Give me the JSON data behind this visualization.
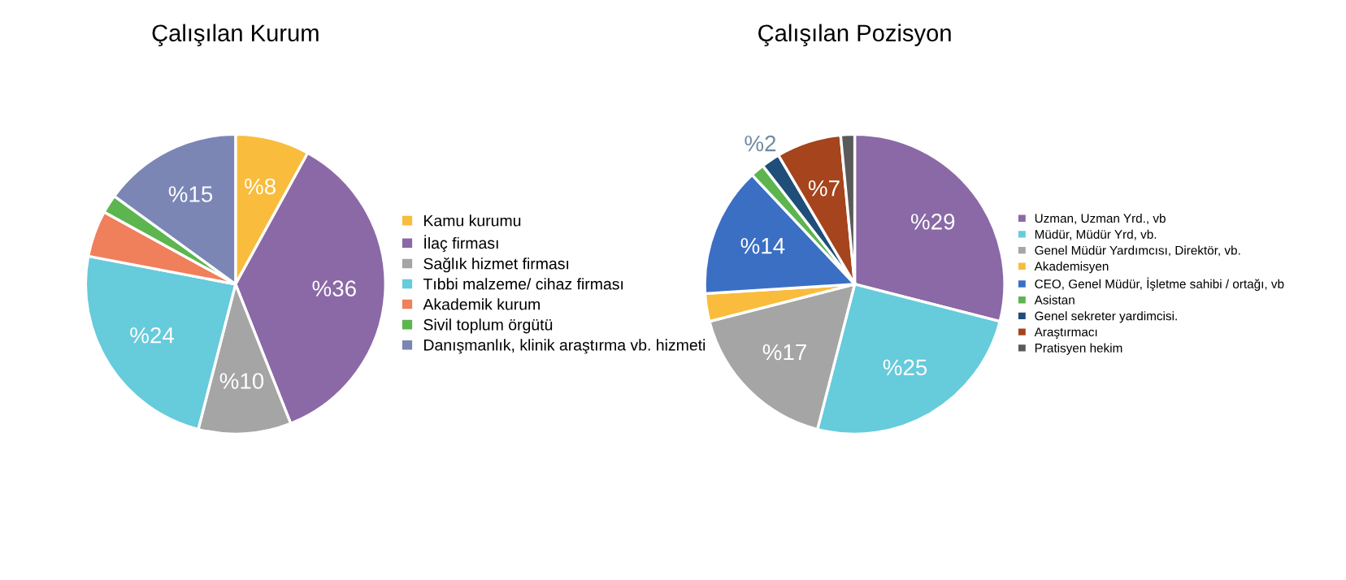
{
  "chart_data": [
    {
      "type": "pie",
      "title": "Çalışılan Kurum",
      "legend": "right",
      "categories": [
        "Kamu kurumu",
        "İlaç firması",
        "Sağlık hizmet firması",
        "Tıbbi malzeme/ cihaz firması",
        "Akademik kurum",
        "Sivil toplum örgütü",
        "Danışmanlık, klinik araştırma vb. hizmeti"
      ],
      "values": [
        8,
        36,
        10,
        24,
        5,
        2,
        15
      ],
      "value_labels": [
        "%8",
        "%36",
        "%10",
        "%24",
        null,
        null,
        "%15"
      ],
      "colors": [
        "#f9bc3c",
        "#8a69a6",
        "#a5a5a5",
        "#66cbdb",
        "#f07f5b",
        "#5db54f",
        "#7b86b5"
      ]
    },
    {
      "type": "pie",
      "title": "Çalışılan Pozisyon",
      "legend": "right",
      "categories": [
        "Uzman, Uzman Yrd., vb",
        "Müdür, Müdür Yrd, vb.",
        "Genel Müdür Yardımcısı, Direktör, vb.",
        "Akademisyen",
        "CEO, Genel Müdür, İşletme sahibi / ortağı, vb",
        "Asistan",
        "Genel sekreter yardimcisi.",
        "Araştırmacı",
        "Pratisyen hekim"
      ],
      "values": [
        29,
        25,
        17,
        3,
        14,
        1.5,
        2,
        7,
        1.5
      ],
      "value_labels": [
        "%29",
        "%25",
        "%17",
        null,
        "%14",
        null,
        "%2",
        "%7",
        null
      ],
      "colors": [
        "#8a69a6",
        "#66cbdb",
        "#a5a5a5",
        "#f9bc3c",
        "#3a6fc4",
        "#5db54f",
        "#1f4e79",
        "#a5441d",
        "#5a5a5a"
      ]
    }
  ]
}
